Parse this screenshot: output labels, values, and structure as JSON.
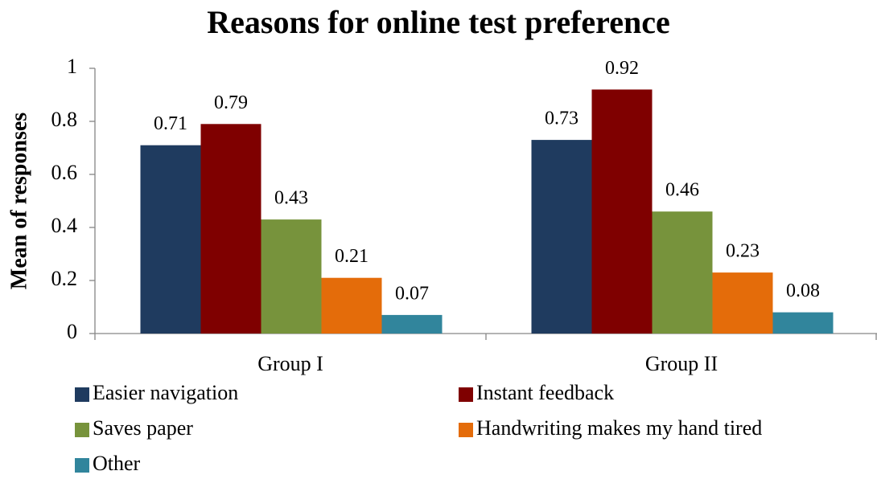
{
  "chart_data": {
    "type": "bar",
    "title": "Reasons for online test preference",
    "ylabel": "Mean of responses",
    "categories": [
      "Group I",
      "Group II"
    ],
    "series": [
      {
        "name": "Easier navigation",
        "color": "#1f3b5f",
        "values": [
          0.71,
          0.73
        ]
      },
      {
        "name": "Instant feedback",
        "color": "#7f0000",
        "values": [
          0.79,
          0.92
        ]
      },
      {
        "name": "Saves paper",
        "color": "#77933c",
        "values": [
          0.43,
          0.46
        ]
      },
      {
        "name": "Handwriting makes my hand tired",
        "color": "#e46c0a",
        "values": [
          0.21,
          0.23
        ]
      },
      {
        "name": "Other",
        "color": "#31859c",
        "values": [
          0.07,
          0.08
        ]
      }
    ],
    "ylim": [
      0,
      1
    ],
    "yticks": [
      0,
      0.2,
      0.4,
      0.6,
      0.8,
      1
    ],
    "grid": false,
    "legend": "bottom"
  }
}
